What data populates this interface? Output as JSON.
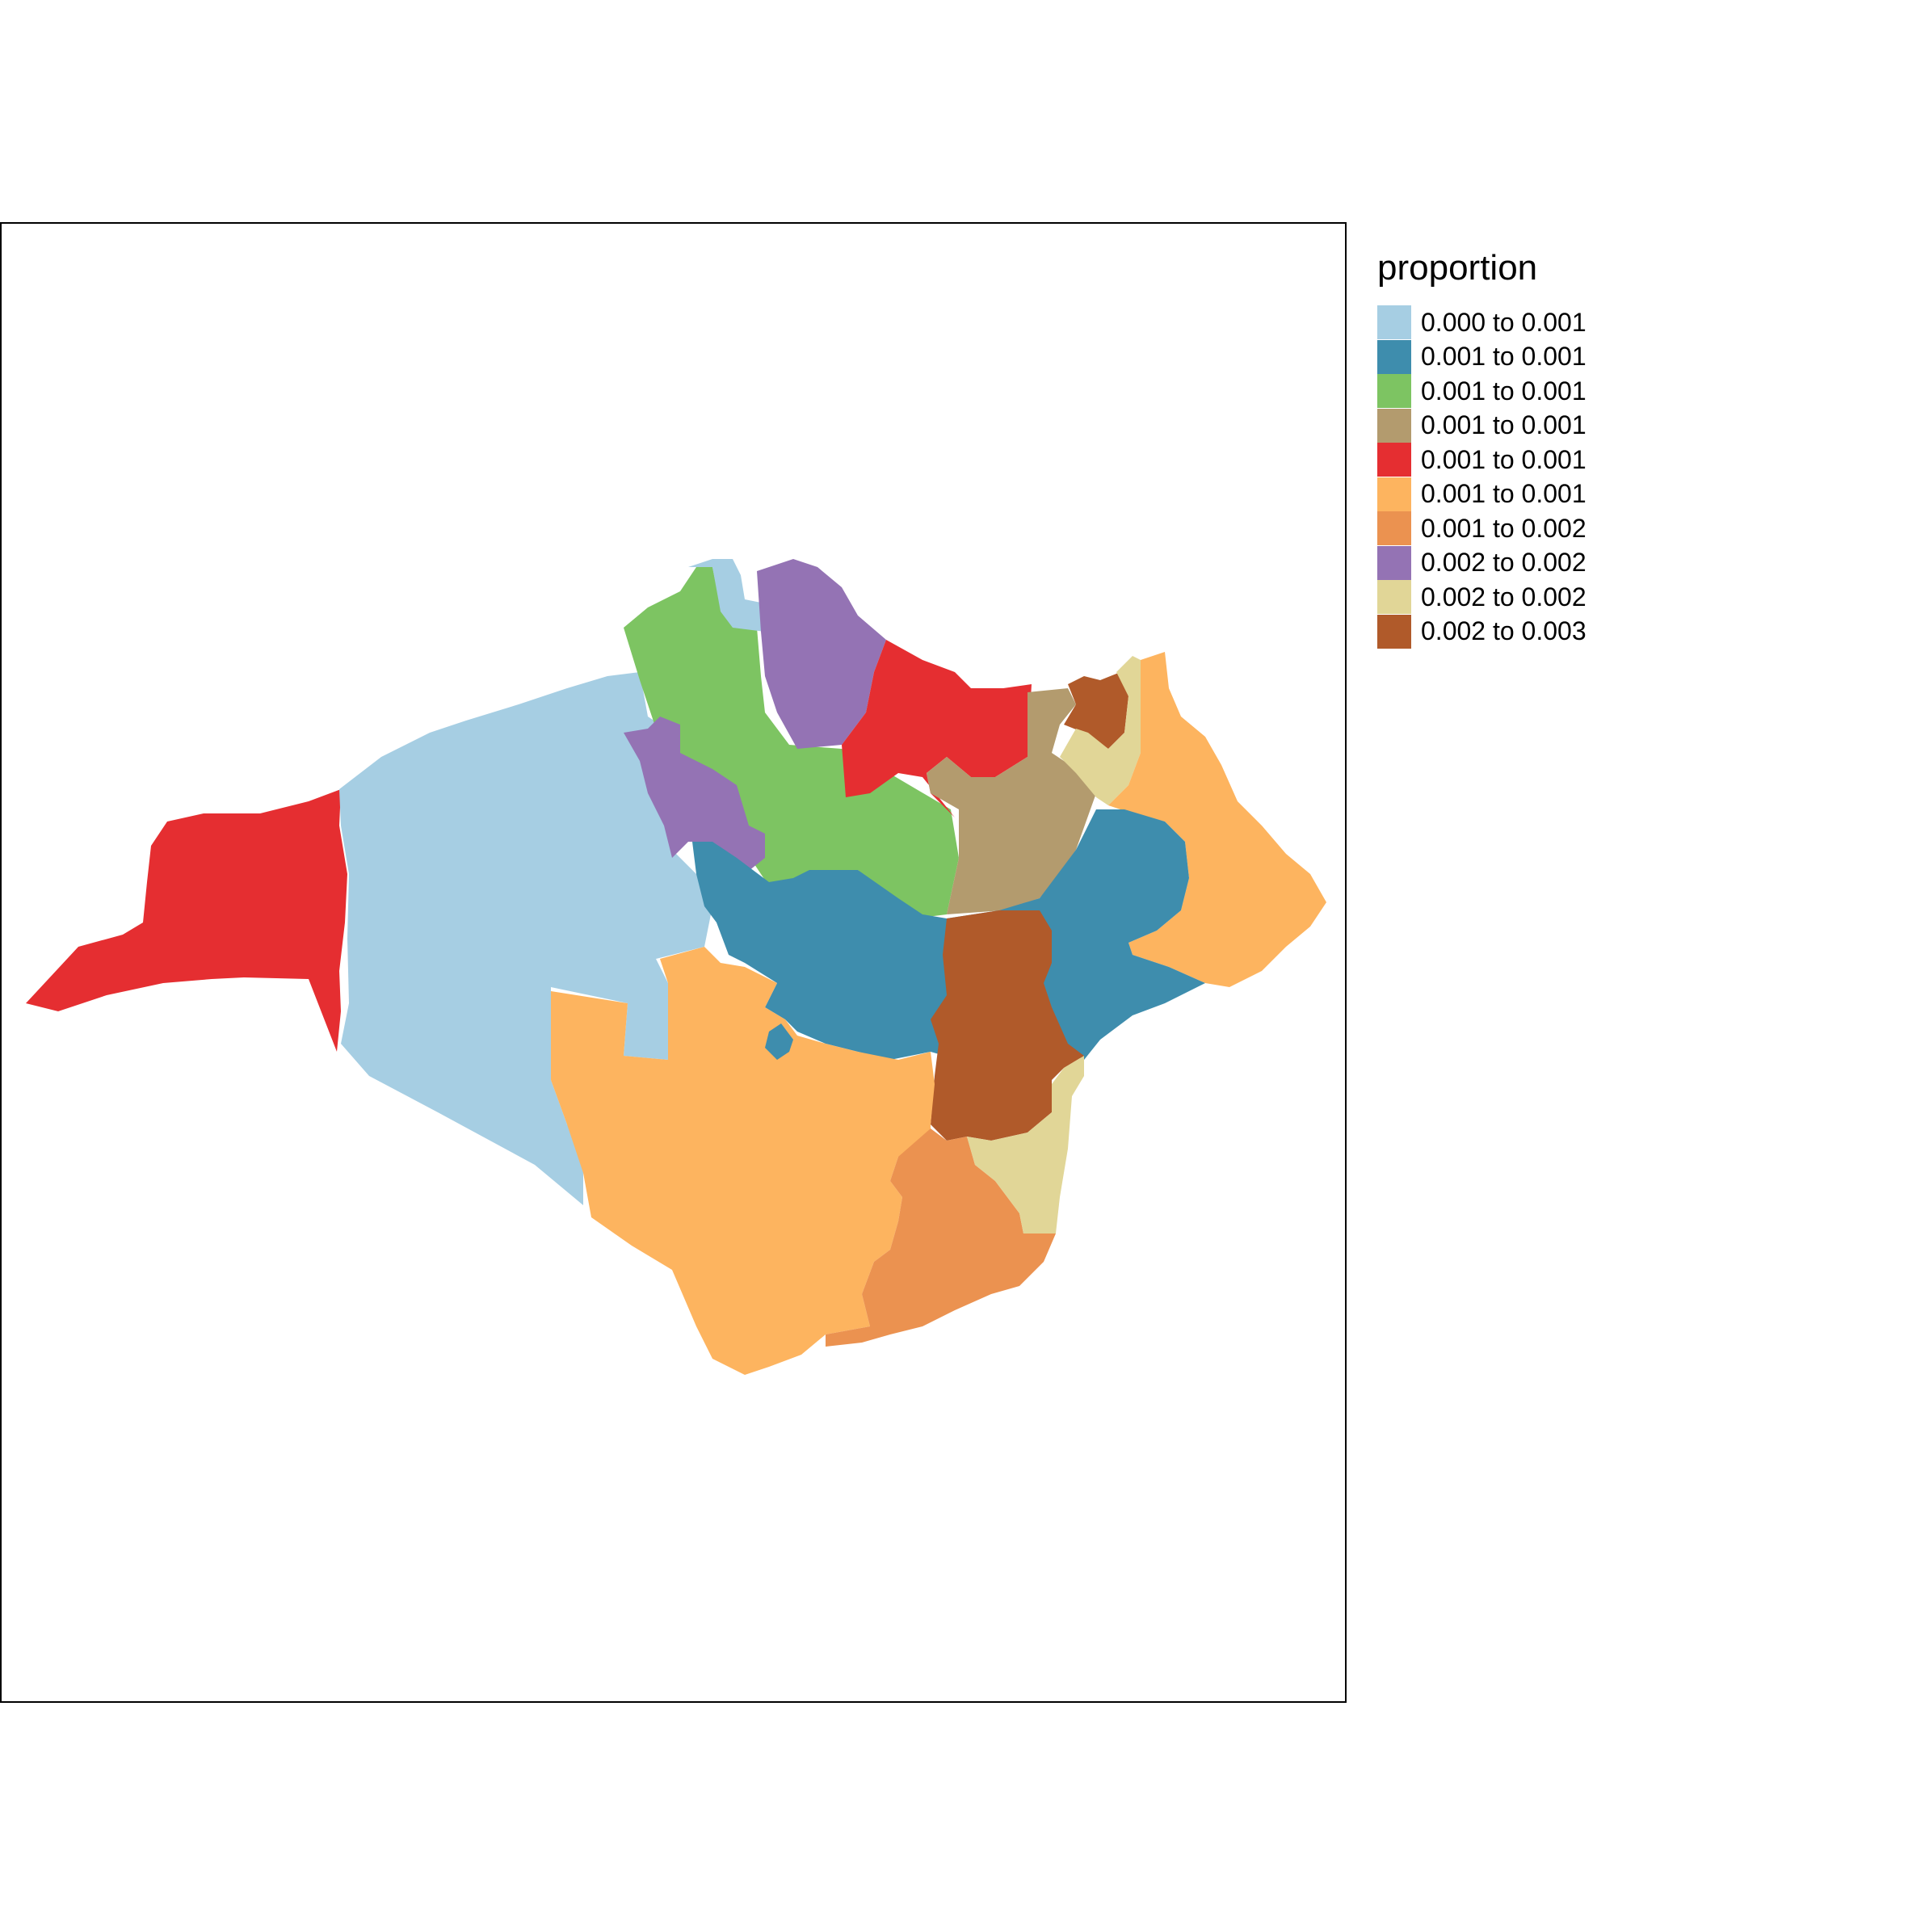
{
  "legend": {
    "title": "proportion",
    "classes": [
      {
        "label": "0.000 to 0.001",
        "color": "#A6CEE3"
      },
      {
        "label": "0.001 to 0.001",
        "color": "#3E8DAD"
      },
      {
        "label": "0.001 to 0.001",
        "color": "#7DC462"
      },
      {
        "label": "0.001 to 0.001",
        "color": "#B39B6E"
      },
      {
        "label": "0.001 to 0.001",
        "color": "#E52E31"
      },
      {
        "label": "0.001 to 0.001",
        "color": "#FDB45F"
      },
      {
        "label": "0.001 to 0.002",
        "color": "#EB9250"
      },
      {
        "label": "0.002 to 0.002",
        "color": "#9473B4"
      },
      {
        "label": "0.002 to 0.002",
        "color": "#E1D697"
      },
      {
        "label": "0.002 to 0.003",
        "color": "#B05A2A"
      }
    ]
  }
}
